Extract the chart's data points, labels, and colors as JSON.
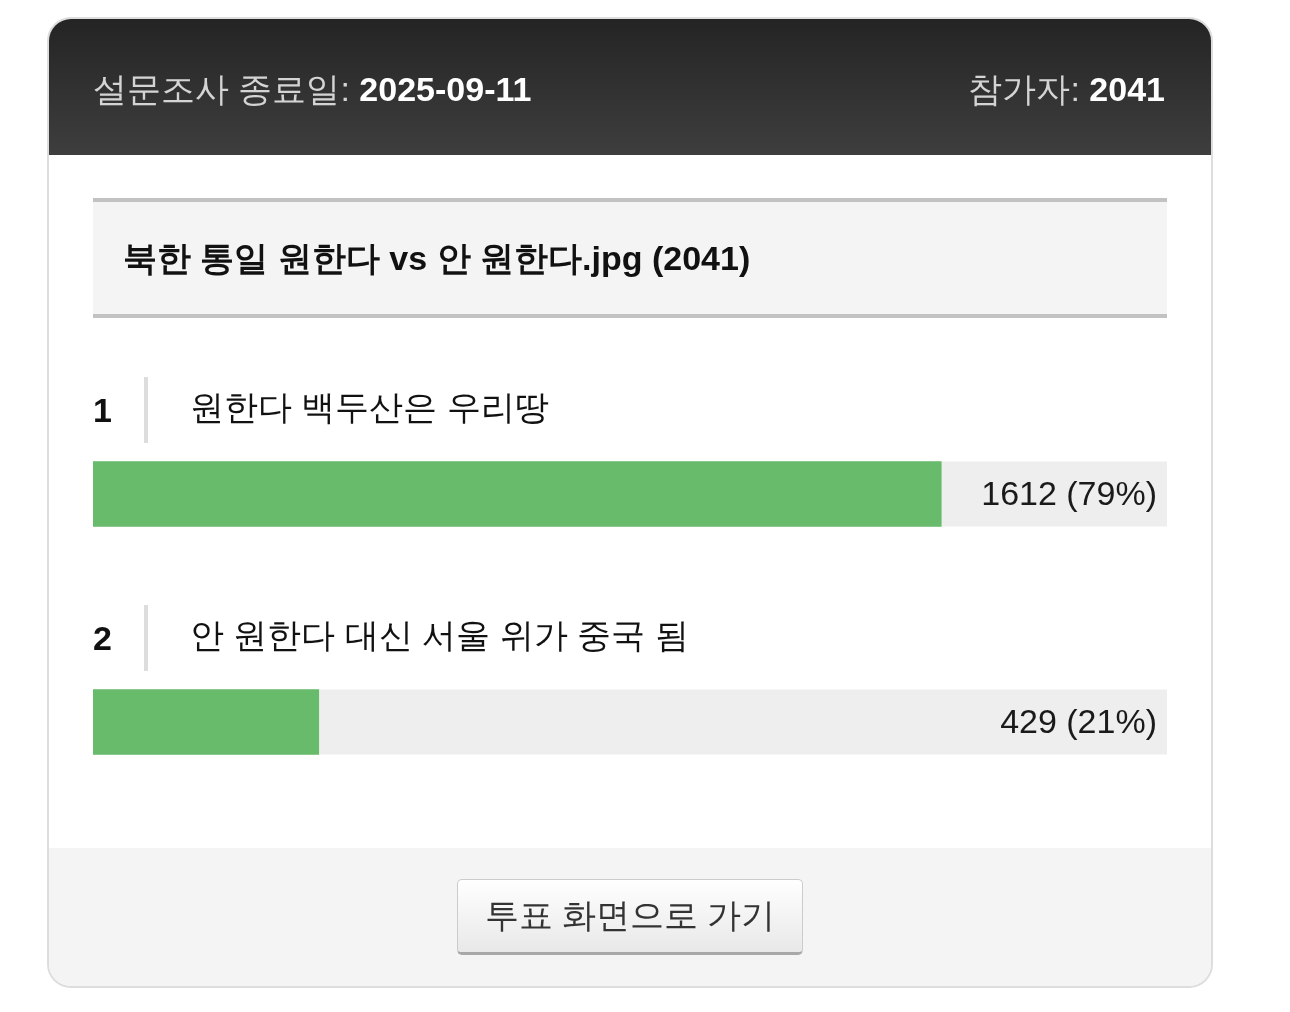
{
  "chart_data": {
    "type": "bar",
    "orientation": "horizontal",
    "title": "북한 통일 원한다 vs 안 원한다.jpg (2041)",
    "categories": [
      "원한다 백두산은 우리땅",
      "안 원한다 대신 서울 위가 중국 됨"
    ],
    "values": [
      1612,
      429
    ],
    "color": "#67bb6a",
    "value_labels": [
      "1612 (79%)",
      "429 (21%)"
    ],
    "xlim": [
      0,
      2041
    ],
    "tick_labels": "y",
    "annotations": [
      "설문조사 종료일:",
      "2025-09-11",
      "참가자:",
      "2041",
      "1",
      "2",
      "투표 화면으로 가기"
    ]
  }
}
